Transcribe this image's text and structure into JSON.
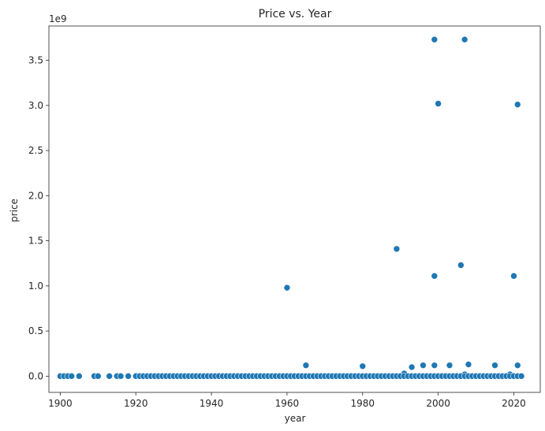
{
  "chart_data": {
    "type": "scatter",
    "title": "Price vs. Year",
    "xlabel": "year",
    "ylabel": "price",
    "y_offset_label": "1e9",
    "xlim": [
      1897,
      2027
    ],
    "ylim": [
      -0.18,
      3.88
    ],
    "x_ticks": [
      1900,
      1920,
      1940,
      1960,
      1980,
      2000,
      2020
    ],
    "y_ticks": [
      0.0,
      0.5,
      1.0,
      1.5,
      2.0,
      2.5,
      3.0,
      3.5
    ],
    "y_tick_labels": [
      "0.0",
      "0.5",
      "1.0",
      "1.5",
      "2.0",
      "2.5",
      "3.0",
      "3.5"
    ],
    "grid": false,
    "marker_color": "#1f77b4",
    "series": [
      {
        "x": [
          1999,
          2007,
          2000,
          2021,
          1989,
          2006,
          1999,
          2020,
          1960,
          1965,
          1980,
          1993,
          1996,
          1999,
          2003,
          2008,
          2015,
          2021,
          1991,
          2007,
          2019,
          1900,
          1901,
          1902,
          1903,
          1905,
          1909,
          1910,
          1913,
          1915,
          1916,
          1918,
          1920,
          1921,
          1922,
          1923,
          1924,
          1925,
          1926,
          1927,
          1928,
          1929,
          1930,
          1931,
          1932,
          1933,
          1934,
          1935,
          1936,
          1937,
          1938,
          1939,
          1940,
          1941,
          1942,
          1943,
          1944,
          1945,
          1946,
          1947,
          1948,
          1949,
          1950,
          1951,
          1952,
          1953,
          1954,
          1955,
          1956,
          1957,
          1958,
          1959,
          1960,
          1961,
          1962,
          1963,
          1964,
          1965,
          1966,
          1967,
          1968,
          1969,
          1970,
          1971,
          1972,
          1973,
          1974,
          1975,
          1976,
          1977,
          1978,
          1979,
          1980,
          1981,
          1982,
          1983,
          1984,
          1985,
          1986,
          1987,
          1988,
          1989,
          1990,
          1991,
          1992,
          1993,
          1994,
          1995,
          1996,
          1997,
          1998,
          1999,
          2000,
          2001,
          2002,
          2003,
          2004,
          2005,
          2006,
          2007,
          2008,
          2009,
          2010,
          2011,
          2012,
          2013,
          2014,
          2015,
          2016,
          2017,
          2018,
          2019,
          2020,
          2021,
          2022
        ],
        "y": [
          3.73,
          3.73,
          3.02,
          3.01,
          1.41,
          1.23,
          1.11,
          1.11,
          0.98,
          0.12,
          0.11,
          0.1,
          0.12,
          0.12,
          0.12,
          0.13,
          0.12,
          0.12,
          0.03,
          0.02,
          0.02,
          0.0,
          0.0,
          0.0,
          0.0,
          0.0,
          0.0,
          0.0,
          0.0,
          0.0,
          0.0,
          0.0,
          0.0,
          0.0,
          0.0,
          0.0,
          0.0,
          0.0,
          0.0,
          0.0,
          0.0,
          0.0,
          0.0,
          0.0,
          0.0,
          0.0,
          0.0,
          0.0,
          0.0,
          0.0,
          0.0,
          0.0,
          0.0,
          0.0,
          0.0,
          0.0,
          0.0,
          0.0,
          0.0,
          0.0,
          0.0,
          0.0,
          0.0,
          0.0,
          0.0,
          0.0,
          0.0,
          0.0,
          0.0,
          0.0,
          0.0,
          0.0,
          0.0,
          0.0,
          0.0,
          0.0,
          0.0,
          0.0,
          0.0,
          0.0,
          0.0,
          0.0,
          0.0,
          0.0,
          0.0,
          0.0,
          0.0,
          0.0,
          0.0,
          0.0,
          0.0,
          0.0,
          0.0,
          0.0,
          0.0,
          0.0,
          0.0,
          0.0,
          0.0,
          0.0,
          0.0,
          0.0,
          0.0,
          0.0,
          0.0,
          0.0,
          0.0,
          0.0,
          0.0,
          0.0,
          0.0,
          0.0,
          0.0,
          0.0,
          0.0,
          0.0,
          0.0,
          0.0,
          0.0,
          0.0,
          0.0,
          0.0,
          0.0,
          0.0,
          0.0,
          0.0,
          0.0,
          0.0,
          0.0,
          0.0,
          0.0,
          0.0,
          0.0,
          0.0,
          0.0
        ]
      }
    ]
  }
}
